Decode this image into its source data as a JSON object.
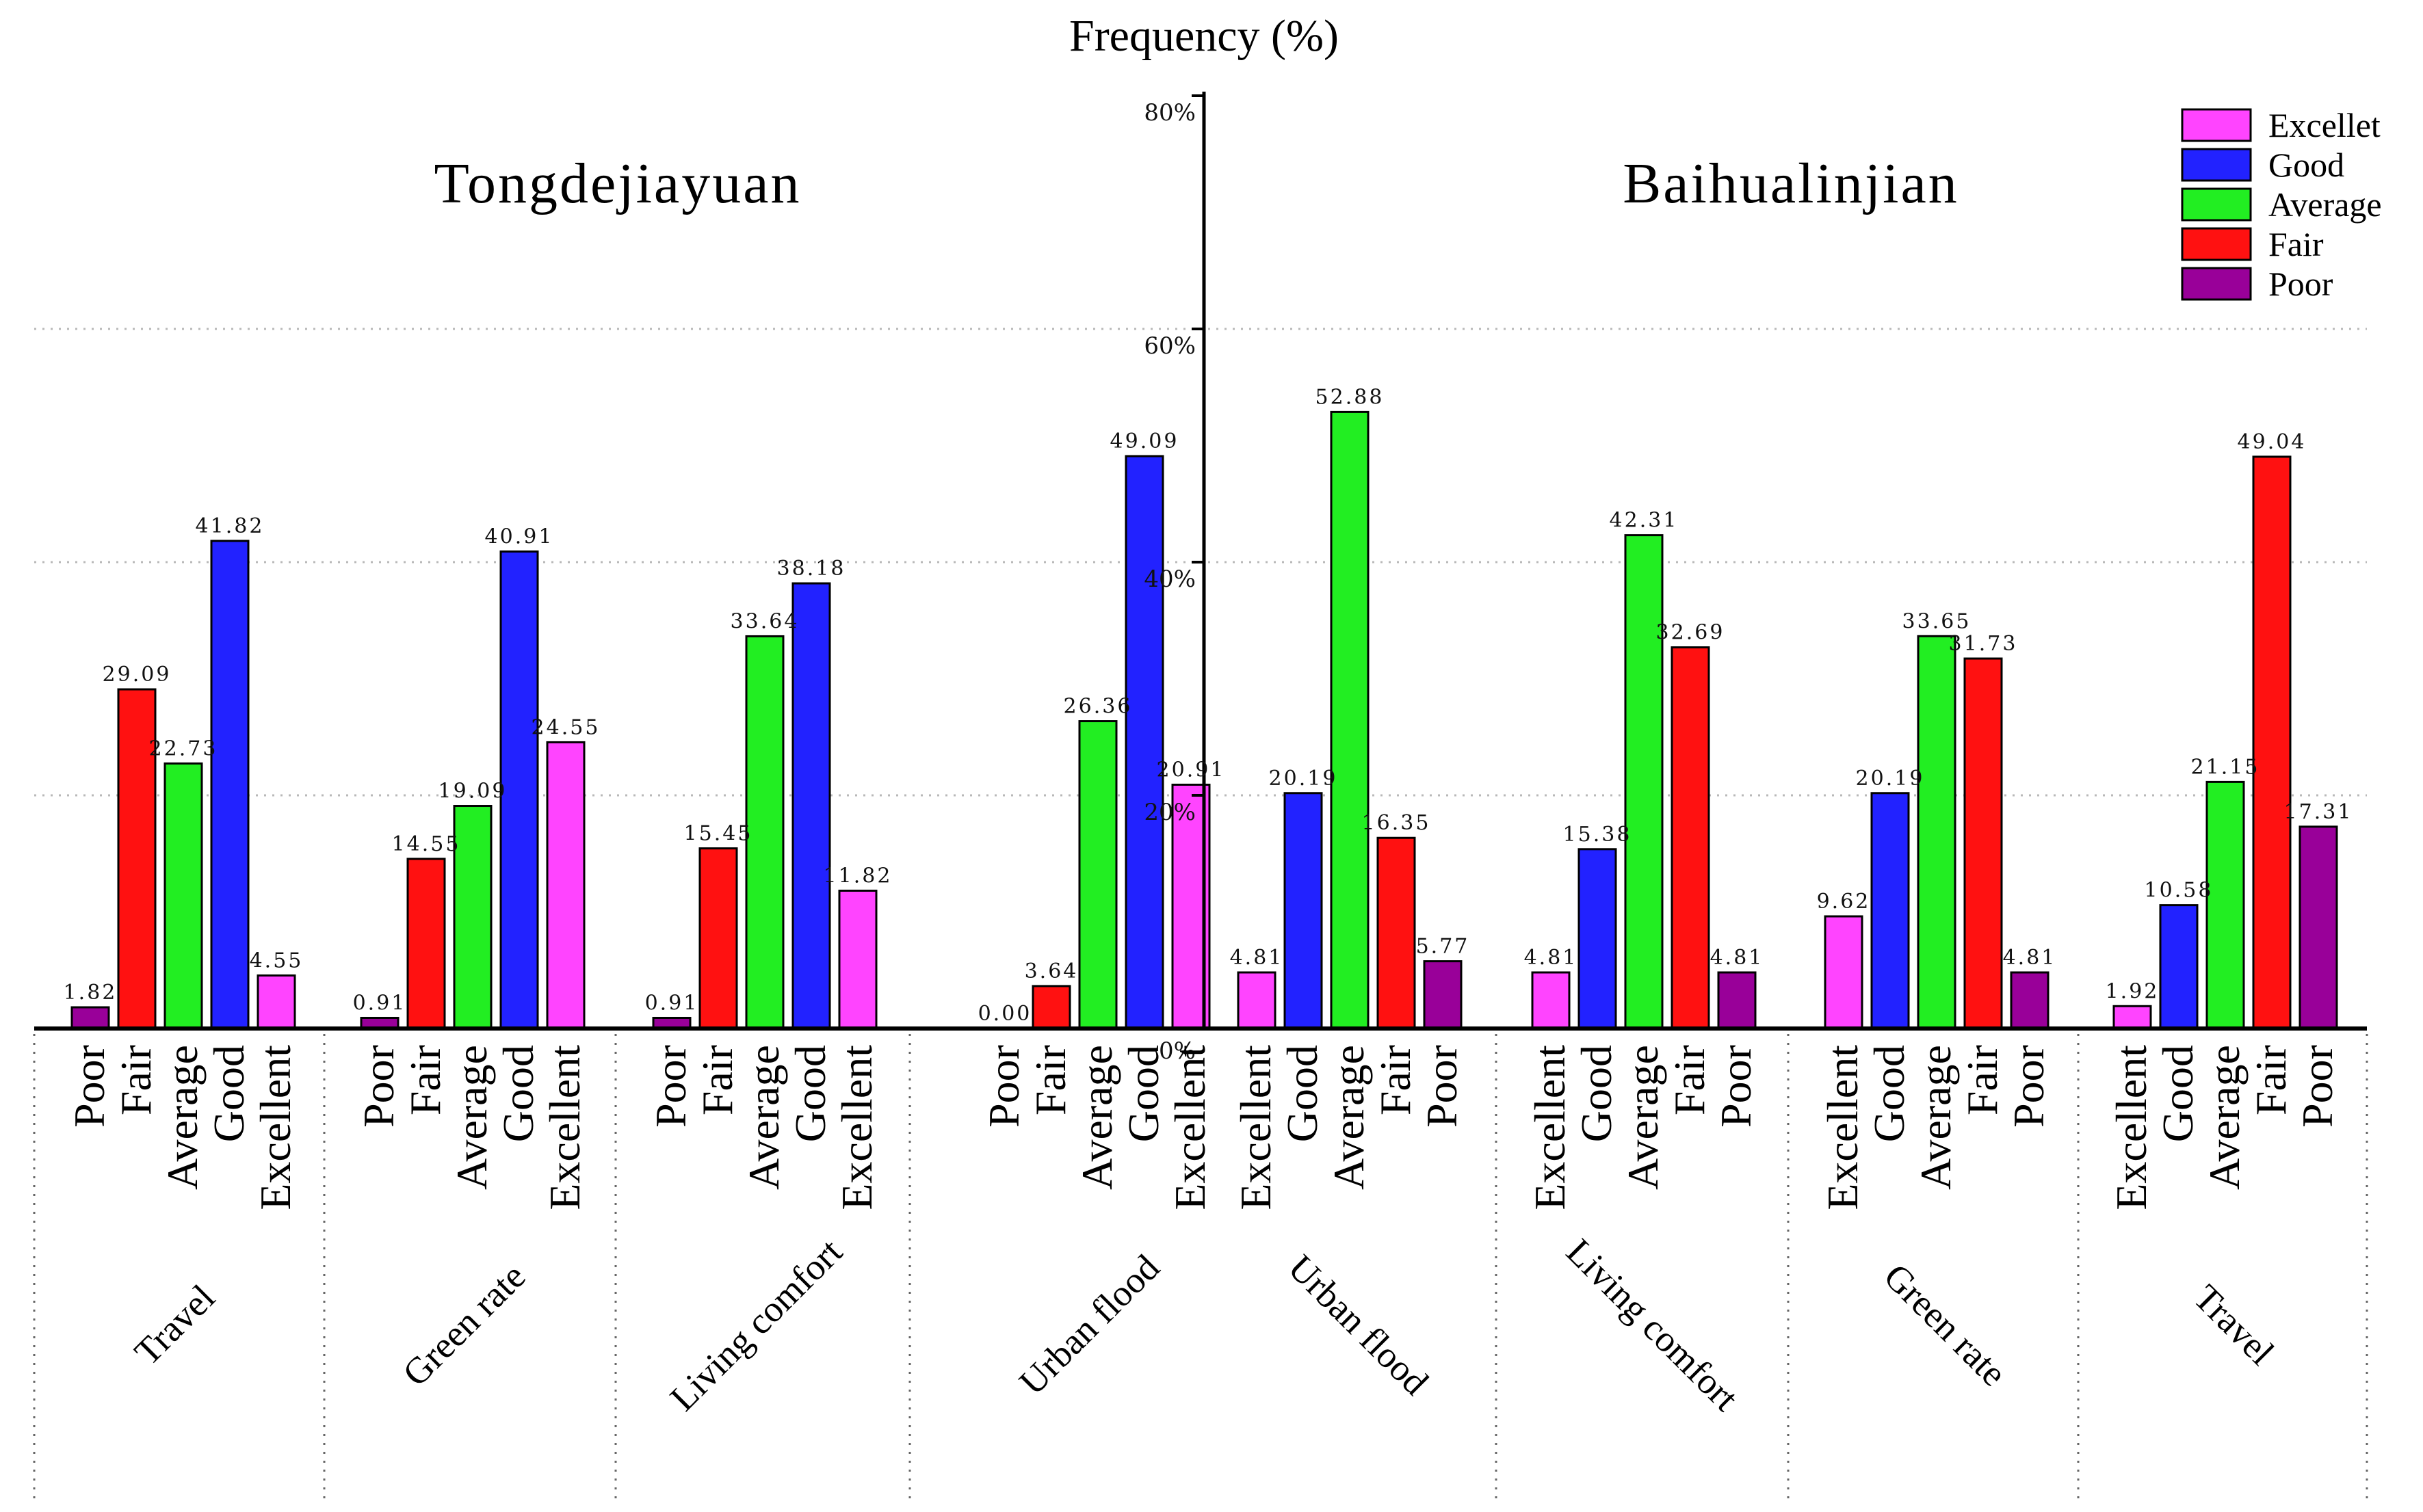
{
  "chart_data": {
    "type": "bar",
    "title": "Frequency (%)",
    "ylabel": "Frequency (%)",
    "ylim": [
      0,
      80
    ],
    "yticks": [
      0,
      20,
      40,
      60,
      80
    ],
    "ytick_labels": [
      "0%",
      "20%",
      "40%",
      "60%",
      "80%"
    ],
    "grid": true,
    "legend_position": "top-right",
    "colors": {
      "Excellent": "#ff44ff",
      "Good": "#2222ff",
      "Average": "#22ee22",
      "Fair": "#ff1111",
      "Poor": "#990099"
    },
    "legend": [
      {
        "key": "Excellent",
        "label": "Excellet"
      },
      {
        "key": "Good",
        "label": "Good"
      },
      {
        "key": "Average",
        "label": "Average"
      },
      {
        "key": "Fair",
        "label": "Fair"
      },
      {
        "key": "Poor",
        "label": "Poor"
      }
    ],
    "panels": [
      {
        "name": "Tongdejiayuan",
        "groups": [
          {
            "name": "Travel",
            "categories": [
              "Poor",
              "Fair",
              "Average",
              "Good",
              "Excellent"
            ],
            "values": [
              1.82,
              29.09,
              22.73,
              41.82,
              4.55
            ],
            "value_labels": [
              "1.82",
              "29.09",
              "22.73",
              "41.82",
              "4.55"
            ]
          },
          {
            "name": "Green rate",
            "categories": [
              "Poor",
              "Fair",
              "Average",
              "Good",
              "Excellent"
            ],
            "values": [
              0.91,
              14.55,
              19.09,
              40.91,
              24.55
            ],
            "value_labels": [
              "0.91",
              "14.55",
              "19.09",
              "40.91",
              "24.55"
            ]
          },
          {
            "name": "Living comfort",
            "categories": [
              "Poor",
              "Fair",
              "Average",
              "Good",
              "Excellent"
            ],
            "values": [
              0.91,
              15.45,
              33.64,
              38.18,
              11.82
            ],
            "value_labels": [
              "0.91",
              "15.45",
              "33.64",
              "38.18",
              "11.82"
            ]
          },
          {
            "name": "Urban flood",
            "categories": [
              "Poor",
              "Fair",
              "Average",
              "Good",
              "Excellent"
            ],
            "values": [
              0.0,
              3.64,
              26.36,
              49.09,
              20.91
            ],
            "value_labels": [
              "0.00",
              "3.64",
              "26.36",
              "49.09",
              "20.91"
            ]
          }
        ]
      },
      {
        "name": "Baihualinjian",
        "groups": [
          {
            "name": "Urban flood",
            "categories": [
              "Excellent",
              "Good",
              "Average",
              "Fair",
              "Poor"
            ],
            "values": [
              4.81,
              20.19,
              52.88,
              16.35,
              5.77
            ],
            "value_labels": [
              "4.81",
              "20.19",
              "52.88",
              "16.35",
              "5.77"
            ]
          },
          {
            "name": "Living comfort",
            "categories": [
              "Excellent",
              "Good",
              "Average",
              "Fair",
              "Poor"
            ],
            "values": [
              4.81,
              15.38,
              42.31,
              32.69,
              4.81
            ],
            "value_labels": [
              "4.81",
              "15.38",
              "42.31",
              "32.69",
              "4.81"
            ]
          },
          {
            "name": "Green rate",
            "categories": [
              "Excellent",
              "Good",
              "Average",
              "Fair",
              "Poor"
            ],
            "values": [
              9.62,
              20.19,
              33.65,
              31.73,
              4.81
            ],
            "value_labels": [
              "9.62",
              "20.19",
              "33.65",
              "31.73",
              "4.81"
            ]
          },
          {
            "name": "Travel",
            "categories": [
              "Excellent",
              "Good",
              "Average",
              "Fair",
              "Poor"
            ],
            "values": [
              1.92,
              10.58,
              21.15,
              49.04,
              17.31
            ],
            "value_labels": [
              "1.92",
              "10.58",
              "21.15",
              "49.04",
              "17.31"
            ]
          }
        ]
      }
    ]
  }
}
